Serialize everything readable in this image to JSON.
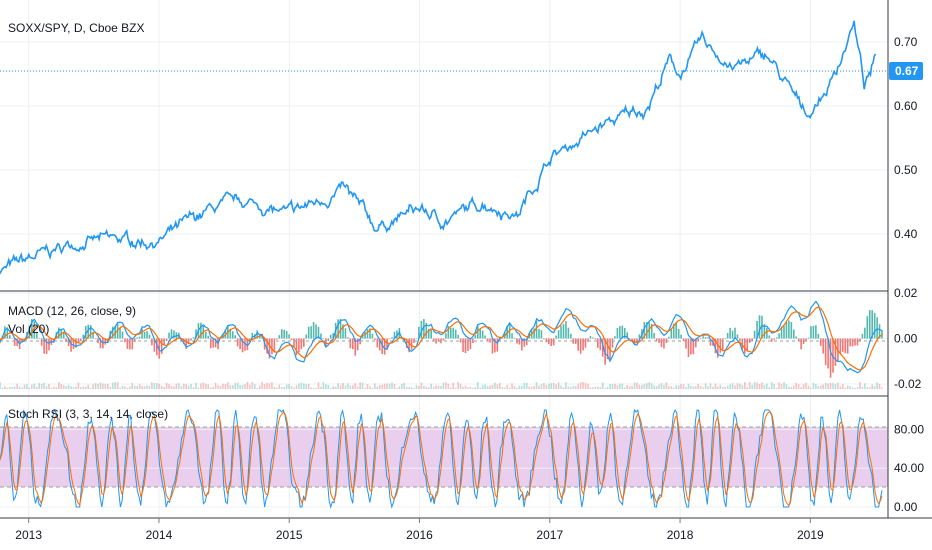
{
  "symbol_title": "SOXX/SPY, D, Cboe BZX",
  "last_price": "0.67",
  "colors": {
    "price_line": "#2196f3",
    "macd_line": "#2196f3",
    "signal_line": "#ff6d00",
    "hist_up": "#26a69a",
    "hist_down": "#ef5350",
    "stoch_k": "#2196f3",
    "stoch_d": "#ff6d00",
    "stoch_band": "#e1bee7"
  },
  "chart_data": [
    {
      "type": "line",
      "panel": "price",
      "title": "SOXX/SPY, D, Cboe BZX",
      "x": [
        "2012-10",
        "2013-01",
        "2013-06",
        "2014-01",
        "2014-06",
        "2014-09",
        "2015-01",
        "2015-06",
        "2015-09",
        "2016-01",
        "2016-03",
        "2016-07",
        "2016-10",
        "2017-01",
        "2017-06",
        "2017-10",
        "2017-12",
        "2018-01",
        "2018-03",
        "2018-06",
        "2018-09",
        "2018-12",
        "2019-01",
        "2019-03",
        "2019-05",
        "2019-06",
        "2019-07"
      ],
      "y": [
        0.34,
        0.36,
        0.39,
        0.39,
        0.44,
        0.45,
        0.43,
        0.47,
        0.41,
        0.44,
        0.42,
        0.45,
        0.43,
        0.52,
        0.57,
        0.6,
        0.67,
        0.65,
        0.7,
        0.66,
        0.68,
        0.6,
        0.59,
        0.64,
        0.73,
        0.63,
        0.67
      ],
      "yticks": [
        "0.40",
        "0.50",
        "0.60",
        "0.70"
      ],
      "xticks": [
        "2013",
        "2014",
        "2015",
        "2016",
        "2017",
        "2018",
        "2019"
      ],
      "last_value": "0.67"
    },
    {
      "type": "line",
      "panel": "macd",
      "legend": [
        "MACD (12, 26, close, 9)",
        "Vol (20)"
      ],
      "series": [
        {
          "values": [
            -0.001,
            0.004,
            -0.001,
            0.002,
            0.004,
            -0.003,
            0.002,
            0.003,
            -0.004,
            -0.007,
            0.005,
            0.001,
            -0.003,
            0.006,
            0.004,
            0.002,
            0.005,
            0.01,
            -0.006,
            0.004,
            0.007,
            -0.003,
            -0.005,
            0.008,
            0.014,
            -0.018,
            0.004
          ]
        }
      ],
      "yticks": [
        "0.02",
        "0.00",
        "-0.02"
      ]
    },
    {
      "type": "line",
      "panel": "stoch_rsi",
      "legend": "Stoch RSI (3, 3, 14, 14, close)",
      "yticks": [
        "80.00",
        "40.00",
        "0.00"
      ],
      "bands": [
        20,
        80
      ]
    }
  ]
}
